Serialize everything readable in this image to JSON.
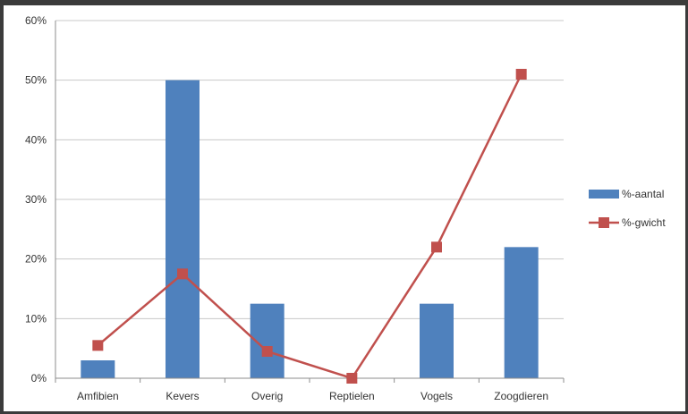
{
  "chart_data": {
    "type": "bar",
    "categories": [
      "Amfibien",
      "Kevers",
      "Overig",
      "Reptielen",
      "Vogels",
      "Zoogdieren"
    ],
    "series": [
      {
        "name": "%-aantal",
        "kind": "bar",
        "color": "#4f81bd",
        "values": [
          3,
          50,
          12.5,
          0,
          12.5,
          22
        ]
      },
      {
        "name": "%-gwicht",
        "kind": "line",
        "color": "#c0504d",
        "values": [
          5.5,
          17.5,
          4.5,
          0,
          22,
          51
        ]
      }
    ],
    "ylim": [
      0,
      60
    ],
    "yticks": [
      "0%",
      "10%",
      "20%",
      "30%",
      "40%",
      "50%",
      "60%"
    ],
    "y_tick_values": [
      0,
      10,
      20,
      30,
      40,
      50,
      60
    ],
    "grid": true,
    "legend_position": "right",
    "title": "",
    "xlabel": "",
    "ylabel": ""
  }
}
